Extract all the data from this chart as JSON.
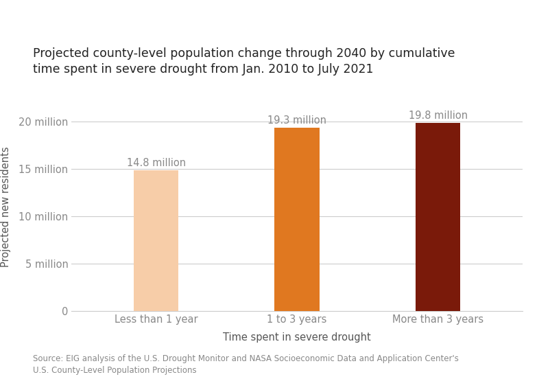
{
  "title": "Projected county-level population change through 2040 by cumulative\ntime spent in severe drought from Jan. 2010 to July 2021",
  "categories": [
    "Less than 1 year",
    "1 to 3 years",
    "More than 3 years"
  ],
  "values": [
    14.8,
    19.3,
    19.8
  ],
  "bar_colors": [
    "#f7cda8",
    "#e07820",
    "#7a1a0a"
  ],
  "bar_labels": [
    "14.8 million",
    "19.3 million",
    "19.8 million"
  ],
  "xlabel": "Time spent in severe drought",
  "ylabel": "Projected new residents",
  "ylim": [
    0,
    22
  ],
  "yticks": [
    0,
    5,
    10,
    15,
    20
  ],
  "ytick_labels": [
    "0",
    "5 million",
    "10 million",
    "15 million",
    "20 million"
  ],
  "source_text": "Source: EIG analysis of the U.S. Drought Monitor and NASA Socioeconomic Data and Application Center's\nU.S. County-Level Population Projections",
  "title_fontsize": 12.5,
  "label_fontsize": 10.5,
  "tick_fontsize": 10.5,
  "source_fontsize": 8.5,
  "bar_label_fontsize": 10.5,
  "background_color": "#ffffff",
  "title_color": "#222222",
  "axis_color": "#888888",
  "label_color": "#555555",
  "source_color": "#888888",
  "bar_label_color": "#888888",
  "grid_color": "#cccccc"
}
